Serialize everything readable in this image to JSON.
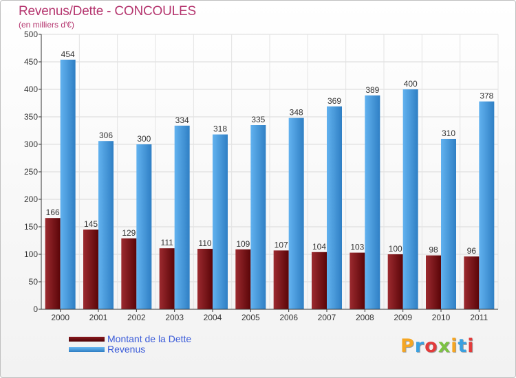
{
  "title": "Revenus/Dette - CONCOULES",
  "subtitle": "(en milliers d'€)",
  "logo": {
    "text": "Proxiti",
    "colors": [
      "#f5a623",
      "#3aa0e0",
      "#e23b3b",
      "#7cc242",
      "#f5a623",
      "#3aa0e0",
      "#e23b3b"
    ]
  },
  "chart_data": {
    "type": "bar",
    "categories": [
      "2000",
      "2001",
      "2002",
      "2003",
      "2004",
      "2005",
      "2006",
      "2007",
      "2008",
      "2009",
      "2010",
      "2011"
    ],
    "series": [
      {
        "name": "Montant de la Dette",
        "color": "#7a0f14",
        "values": [
          166,
          145,
          129,
          111,
          110,
          109,
          107,
          104,
          103,
          100,
          98,
          96
        ]
      },
      {
        "name": "Revenus",
        "color": "#4b9fe0",
        "values": [
          454,
          306,
          300,
          334,
          318,
          335,
          348,
          369,
          389,
          400,
          310,
          378
        ]
      }
    ],
    "ylim": [
      0,
      500
    ],
    "yticks": [
      0,
      50,
      100,
      150,
      200,
      250,
      300,
      350,
      400,
      450,
      500
    ],
    "grid": true,
    "legend": "bottom-left"
  }
}
